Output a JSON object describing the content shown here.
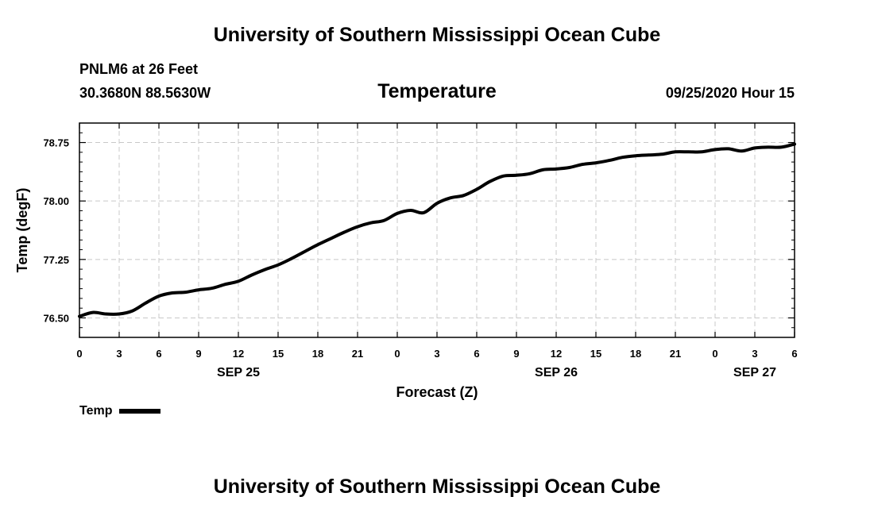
{
  "header": {
    "top_title": "University of Southern Mississippi Ocean Cube",
    "station": "PNLM6 at 26 Feet",
    "coords": "30.3680N 88.5630W",
    "datetime": "09/25/2020 Hour 15"
  },
  "footer": {
    "bottom_title": "University of Southern Mississippi Ocean Cube"
  },
  "colors": {
    "line": "#000000",
    "grid": "#c8c8c8",
    "background": "#ffffff"
  },
  "chart_data": {
    "type": "line",
    "title": "Temperature",
    "xlabel": "Forecast (Z)",
    "ylabel": "Temp (degF)",
    "xlim": [
      0,
      54
    ],
    "ylim": [
      76.25,
      79.0
    ],
    "yticks": [
      76.5,
      77.25,
      78.0,
      78.75
    ],
    "ytick_labels": [
      "76.50",
      "77.25",
      "78.00",
      "78.75"
    ],
    "ytick_minor_step": 0.125,
    "grid": true,
    "xticks": [
      0,
      3,
      6,
      9,
      12,
      15,
      18,
      21,
      24,
      27,
      30,
      33,
      36,
      39,
      42,
      45,
      48,
      51,
      54
    ],
    "xtick_labels": [
      "0",
      "3",
      "6",
      "9",
      "12",
      "15",
      "18",
      "21",
      "0",
      "3",
      "6",
      "9",
      "12",
      "15",
      "18",
      "21",
      "0",
      "3",
      "6"
    ],
    "date_labels": [
      {
        "x": 12,
        "label": "SEP 25"
      },
      {
        "x": 36,
        "label": "SEP 26"
      },
      {
        "x": 51,
        "label": "SEP 27"
      }
    ],
    "legend": {
      "position": "bottom-left",
      "label": "Temp"
    },
    "series": [
      {
        "name": "Temp",
        "x": [
          0,
          1,
          2,
          3,
          4,
          5,
          6,
          7,
          8,
          9,
          10,
          11,
          12,
          13,
          14,
          15,
          16,
          17,
          18,
          19,
          20,
          21,
          22,
          23,
          24,
          25,
          26,
          27,
          28,
          29,
          30,
          31,
          32,
          33,
          34,
          35,
          36,
          37,
          38,
          39,
          40,
          41,
          42,
          43,
          44,
          45,
          46,
          47,
          48,
          49,
          50,
          51,
          52,
          53,
          54
        ],
        "values": [
          76.52,
          76.57,
          76.55,
          76.55,
          76.59,
          76.69,
          76.78,
          76.82,
          76.83,
          76.86,
          76.88,
          76.93,
          76.97,
          77.05,
          77.12,
          77.18,
          77.26,
          77.35,
          77.44,
          77.52,
          77.6,
          77.67,
          77.72,
          77.75,
          77.84,
          77.88,
          77.85,
          77.97,
          78.04,
          78.07,
          78.15,
          78.25,
          78.32,
          78.33,
          78.35,
          78.4,
          78.41,
          78.43,
          78.47,
          78.49,
          78.52,
          78.56,
          78.58,
          78.59,
          78.6,
          78.63,
          78.63,
          78.63,
          78.66,
          78.67,
          78.64,
          78.68,
          78.69,
          78.69,
          78.73
        ]
      }
    ]
  }
}
